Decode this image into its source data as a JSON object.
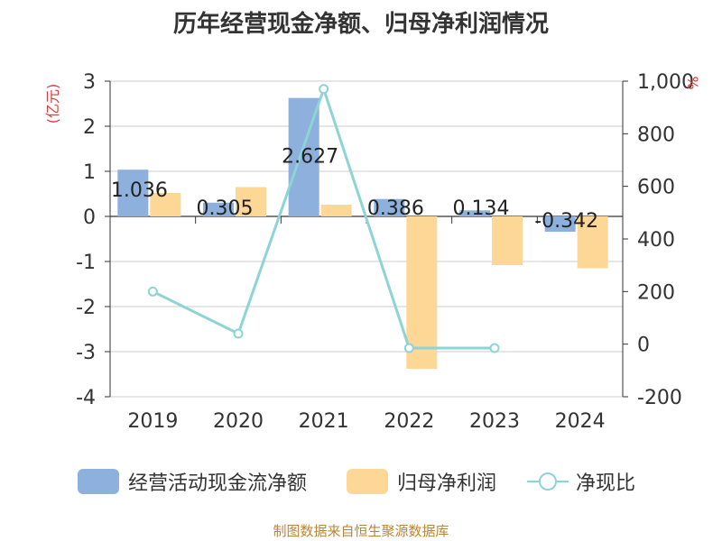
{
  "chart_data": {
    "type": "bar+line",
    "title": "历年经营现金净额、归母净利润情况",
    "categories": [
      "2019",
      "2020",
      "2021",
      "2022",
      "2023",
      "2024"
    ],
    "left_axis": {
      "label": "(亿元)",
      "ylim": [
        -4,
        3
      ],
      "ticks": [
        "3",
        "2",
        "1",
        "0",
        "-1",
        "-2",
        "-3",
        "-4"
      ]
    },
    "right_axis": {
      "label": "%",
      "ylim": [
        -200,
        1000
      ],
      "ticks": [
        "1,000",
        "800",
        "600",
        "400",
        "200",
        "0",
        "-200"
      ]
    },
    "series": [
      {
        "name": "经营活动现金流净额",
        "type": "bar",
        "color": "#8eb0dc",
        "values": [
          1.036,
          0.305,
          2.627,
          0.386,
          0.134,
          -0.342
        ],
        "labels": [
          "1.036",
          "0.305",
          "2.627",
          "0.386",
          "0.134",
          "-0.342"
        ]
      },
      {
        "name": "归母净利润",
        "type": "bar",
        "color": "#fdd796",
        "values": [
          0.52,
          0.65,
          0.26,
          -3.38,
          -1.08,
          -1.15
        ]
      },
      {
        "name": "净现比",
        "type": "line",
        "axis": "right",
        "color": "#8dd4d6",
        "values": [
          200,
          40,
          970,
          -15,
          -15,
          null
        ]
      }
    ]
  },
  "legend": {
    "cash_flow": "经营活动现金流净额",
    "net_profit": "归母净利润",
    "ratio": "净现比"
  },
  "source": "制图数据来自恒生聚源数据库"
}
